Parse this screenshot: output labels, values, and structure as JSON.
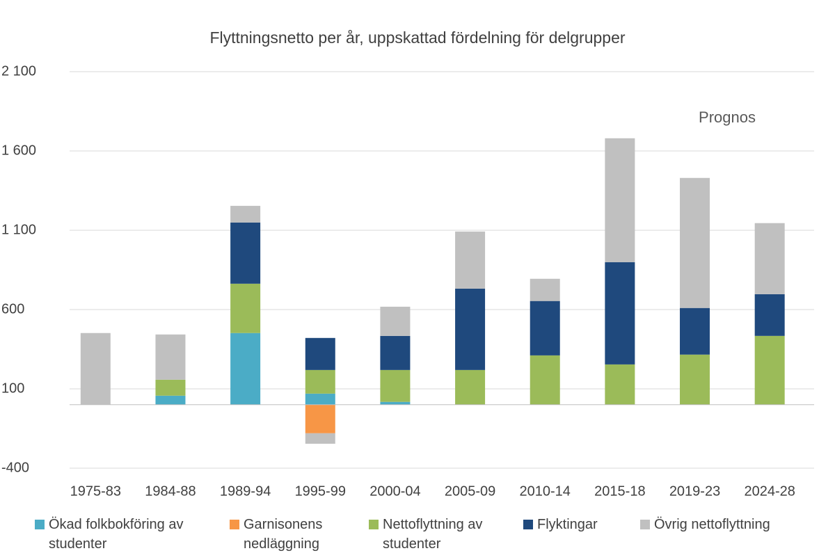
{
  "chart_data": {
    "type": "stacked_bar",
    "title": "Flyttningsnetto per år, uppskattad fördelning för delgrupper",
    "annotation": "Prognos",
    "categories": [
      "1975-83",
      "1984-88",
      "1989-94",
      "1995-99",
      "2000-04",
      "2005-09",
      "2010-14",
      "2015-18",
      "2019-23",
      "2024-28"
    ],
    "series": [
      {
        "name": "Ökad folkbokföring av studenter",
        "color": "#4bacc6",
        "values": [
          0,
          57,
          452,
          70,
          18,
          0,
          0,
          0,
          0,
          0
        ]
      },
      {
        "name": "Garnisonens nedläggning",
        "color": "#f79646",
        "values": [
          0,
          0,
          0,
          -180,
          0,
          0,
          0,
          0,
          0,
          0
        ]
      },
      {
        "name": "Nettoflyttning av studenter",
        "color": "#9bbb59",
        "values": [
          0,
          101,
          311,
          149,
          201,
          219,
          311,
          254,
          316,
          434
        ]
      },
      {
        "name": "Flyktingar",
        "color": "#1f497d",
        "values": [
          0,
          0,
          386,
          202,
          215,
          513,
          343,
          645,
          294,
          263
        ]
      },
      {
        "name": "Övrig nettoflyttning",
        "color": "#c0c0c0",
        "values": [
          452,
          285,
          105,
          -66,
          184,
          360,
          140,
          781,
          820,
          448
        ]
      }
    ],
    "ylim": [
      -400,
      2100
    ],
    "yticks": [
      -400,
      100,
      600,
      {
        "value": 1100,
        "label": "1 100"
      },
      {
        "value": 1600,
        "label": "1 600"
      },
      {
        "value": 2100,
        "label": "2 100"
      }
    ],
    "grid": true,
    "legend": "bottom"
  }
}
